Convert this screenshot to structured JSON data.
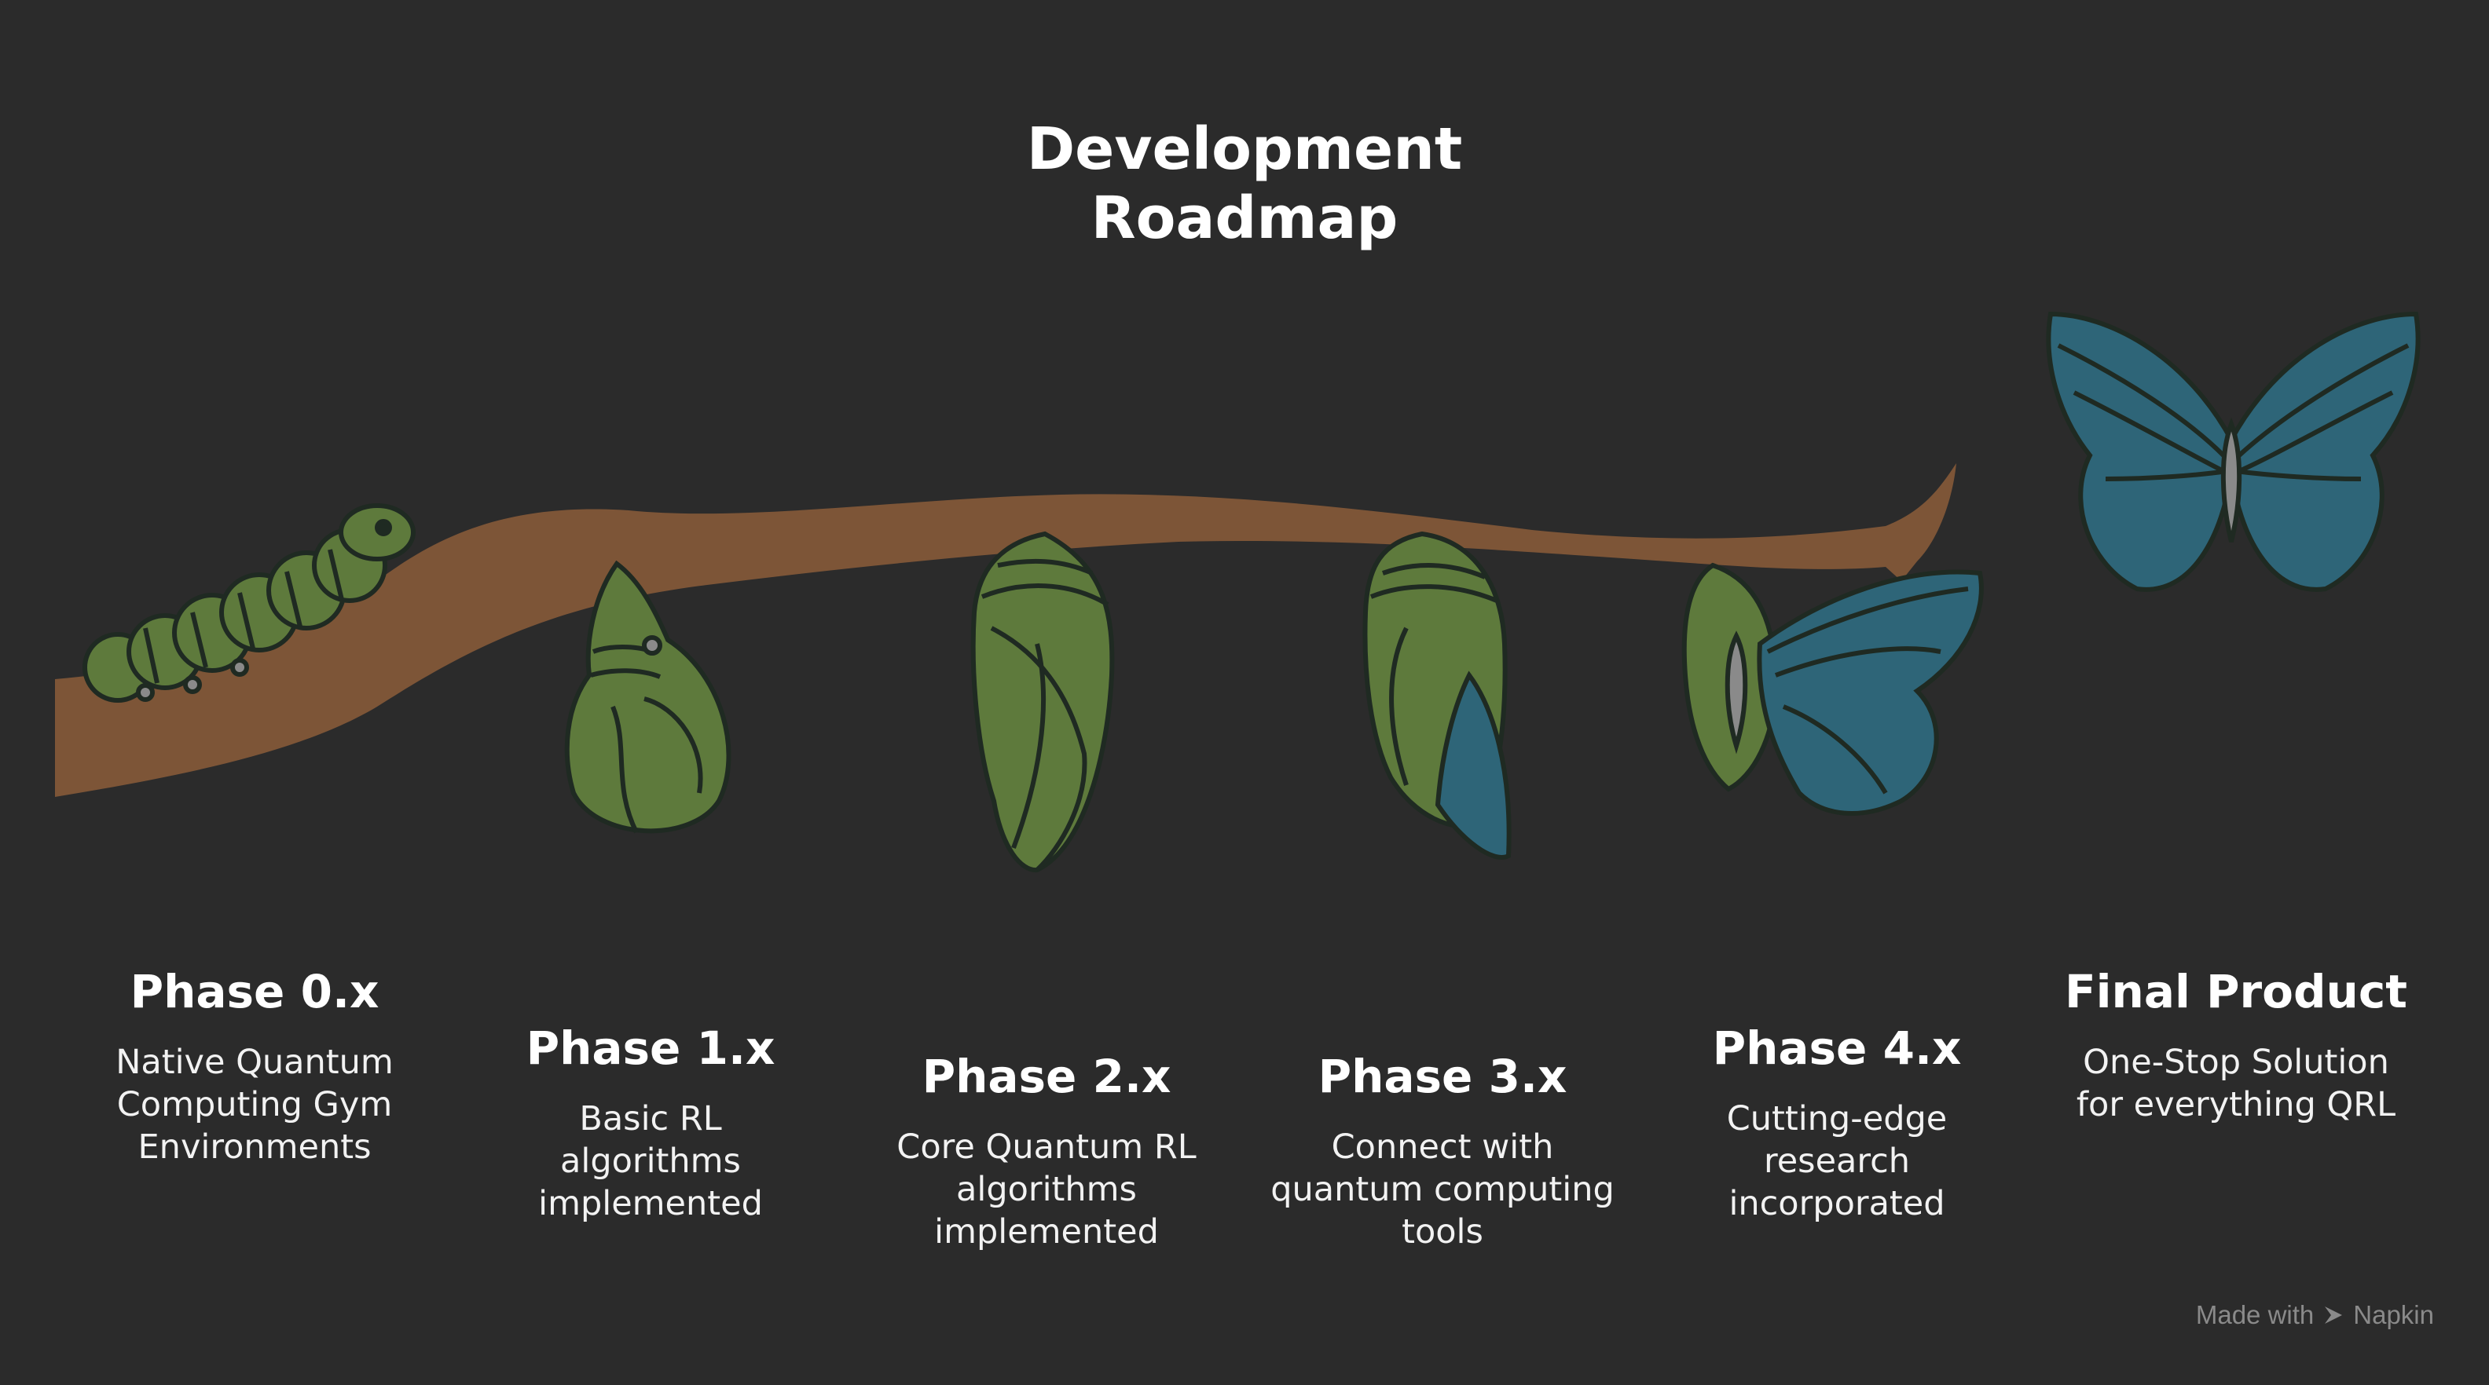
{
  "title_line1": "Development",
  "title_line2": "Roadmap",
  "phases": [
    {
      "title": "Phase 0.x",
      "desc": [
        "Native Quantum",
        "Computing Gym",
        "Environments"
      ],
      "icon": "caterpillar-icon"
    },
    {
      "title": "Phase 1.x",
      "desc": [
        "Basic RL",
        "algorithms",
        "implemented"
      ],
      "icon": "early-chrysalis-icon"
    },
    {
      "title": "Phase 2.x",
      "desc": [
        "Core Quantum RL",
        "algorithms",
        "implemented"
      ],
      "icon": "chrysalis-icon"
    },
    {
      "title": "Phase 3.x",
      "desc": [
        "Connect with",
        "quantum computing",
        "tools"
      ],
      "icon": "late-chrysalis-icon"
    },
    {
      "title": "Phase 4.x",
      "desc": [
        "Cutting-edge",
        "research",
        "incorporated"
      ],
      "icon": "emerging-butterfly-icon"
    },
    {
      "title": "Final Product",
      "desc": [
        "One-Stop Solution",
        "for everything QRL"
      ],
      "icon": "butterfly-icon"
    }
  ],
  "credit": {
    "prefix": "Made with",
    "brand": "Napkin",
    "icon": "napkin-logo-icon"
  },
  "colors": {
    "background": "#2b2b2b",
    "branch": "#7d5537",
    "green": "#5e7a3c",
    "blue": "#2e6578",
    "outline": "#1f2a22",
    "text": "#ffffff",
    "muted": "#8a8a8a"
  }
}
